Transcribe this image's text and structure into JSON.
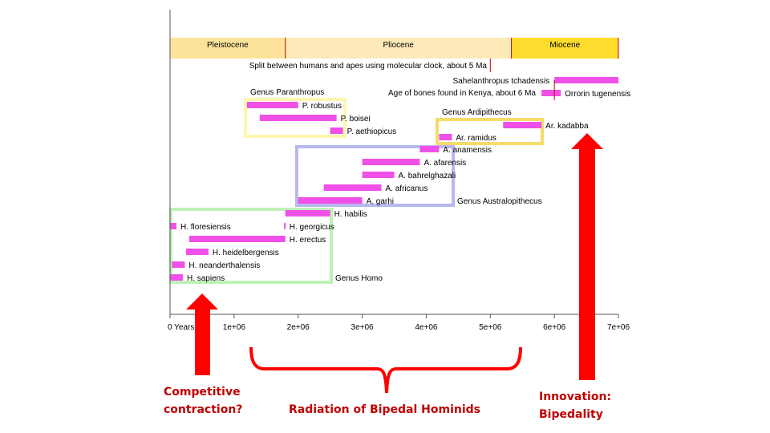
{
  "chart_data": {
    "type": "bar",
    "orientation": "horizontal-range",
    "x_axis": {
      "range": [
        0,
        7000000
      ],
      "ticks": [
        {
          "value": 0,
          "label": "0 Years"
        },
        {
          "value": 1000000,
          "label": "1e+06"
        },
        {
          "value": 2000000,
          "label": "2e+06"
        },
        {
          "value": 3000000,
          "label": "3e+06"
        },
        {
          "value": 4000000,
          "label": "4e+06"
        },
        {
          "value": 5000000,
          "label": "5e+06"
        },
        {
          "value": 6000000,
          "label": "6e+06"
        },
        {
          "value": 7000000,
          "label": "7e+06"
        }
      ]
    },
    "eras": [
      {
        "name": "Pleistocene",
        "start": 0,
        "end": 1800000,
        "color": "#fde39a"
      },
      {
        "name": "Pliocene",
        "start": 1800000,
        "end": 5330000,
        "color": "#fdeab8"
      },
      {
        "name": "Miocene",
        "start": 5330000,
        "end": 7000000,
        "color": "#fddc2e"
      }
    ],
    "species": [
      {
        "name": "Sahelanthropus tchadensis",
        "start": 6000000,
        "end": 7000000,
        "label_side": "left"
      },
      {
        "name": "Orrorin tugenensis",
        "start": 5800000,
        "end": 6100000,
        "label_side": "right"
      },
      {
        "name": "P. robustus",
        "start": 1200000,
        "end": 2000000,
        "label_side": "right"
      },
      {
        "name": "P. boisei",
        "start": 1400000,
        "end": 2600000,
        "label_side": "right"
      },
      {
        "name": "P. aethiopicus",
        "start": 2500000,
        "end": 2700000,
        "label_side": "right"
      },
      {
        "name": "Ar. kadabba",
        "start": 5200000,
        "end": 5800000,
        "label_side": "right"
      },
      {
        "name": "Ar. ramidus",
        "start": 4200000,
        "end": 4400000,
        "label_side": "right"
      },
      {
        "name": "A. anamensis",
        "start": 3900000,
        "end": 4200000,
        "label_side": "right"
      },
      {
        "name": "A. afarensis",
        "start": 3000000,
        "end": 3900000,
        "label_side": "right"
      },
      {
        "name": "A. bahrelghazali",
        "start": 3000000,
        "end": 3500000,
        "label_side": "right"
      },
      {
        "name": "A. africanus",
        "start": 2400000,
        "end": 3300000,
        "label_side": "right"
      },
      {
        "name": "A. garhi",
        "start": 2000000,
        "end": 3000000,
        "label_side": "right"
      },
      {
        "name": "H. habilis",
        "start": 1800000,
        "end": 2500000,
        "label_side": "right"
      },
      {
        "name": "H. floresiensis",
        "start": 0,
        "end": 100000,
        "label_side": "right"
      },
      {
        "name": "H. georgicus",
        "start": 1780000,
        "end": 1800000,
        "label_side": "right"
      },
      {
        "name": "H. erectus",
        "start": 300000,
        "end": 1800000,
        "label_side": "right"
      },
      {
        "name": "H. heidelbergensis",
        "start": 250000,
        "end": 600000,
        "label_side": "right"
      },
      {
        "name": "H. neanderthalensis",
        "start": 30000,
        "end": 230000,
        "label_side": "right"
      },
      {
        "name": "H. sapiens",
        "start": 0,
        "end": 200000,
        "label_side": "right"
      }
    ],
    "genus_groups": [
      {
        "name": "Genus Paranthropus",
        "color": "#fdf6b0"
      },
      {
        "name": "Genus Ardipithecus",
        "color": "#f5dc6a"
      },
      {
        "name": "Genus Australopithecus",
        "color": "#b8b8f0"
      },
      {
        "name": "Genus Homo",
        "color": "#bff0b8"
      }
    ],
    "annotations": [
      {
        "text": "Split between humans and apes using molecular clock, about 5 Ma",
        "x": 5000000
      },
      {
        "text": "Age of bones found in Kenya, about 6 Ma",
        "x": 6000000
      }
    ],
    "bar_color": "#f050e8",
    "era_divider_color": "#c00000"
  },
  "callouts": {
    "left": "Competitive contraction?",
    "middle": "Radiation of Bipedal Hominids",
    "right": "Innovation: Bipedality",
    "arrow_color": "#ff0000",
    "text_color": "#c00000"
  }
}
